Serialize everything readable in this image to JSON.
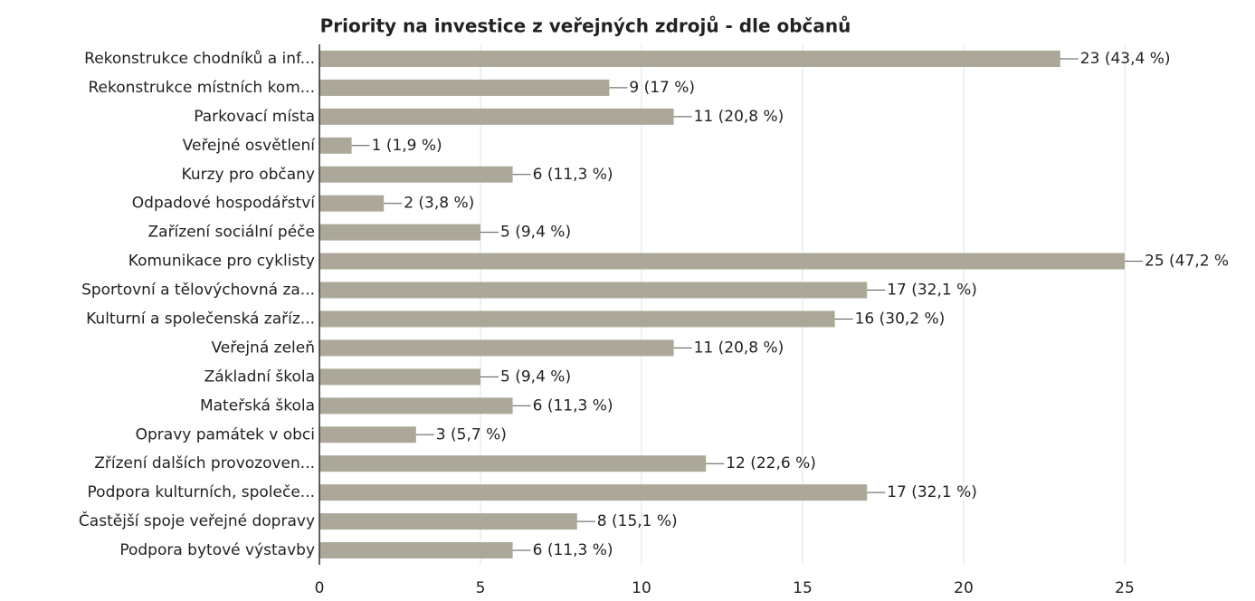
{
  "chart_data": {
    "type": "hbar",
    "title": "Priority na investice z veřejných zdrojů - dle občanů",
    "categories": [
      "Rekonstrukce chodníků a inf...",
      "Rekonstrukce místních kom...",
      "Parkovací místa",
      "Veřejné osvětlení",
      "Kurzy pro občany",
      "Odpadové hospodářství",
      "Zařízení sociální péče",
      "Komunikace pro cyklisty",
      "Sportovní a tělovýchovná za...",
      "Kulturní a společenská zaříz...",
      "Veřejná zeleň",
      "Základní škola",
      "Mateřská škola",
      "Opravy památek v obci",
      "Zřízení dalších provozoven...",
      "Podpora kulturních, společe...",
      "Častější spoje veřejné dopravy",
      "Podpora bytové výstavby"
    ],
    "values": [
      23,
      9,
      11,
      1,
      6,
      2,
      5,
      25,
      17,
      16,
      11,
      5,
      6,
      3,
      12,
      17,
      8,
      6
    ],
    "value_labels": [
      "23 (43,4 %)",
      "9 (17 %)",
      "11 (20,8 %)",
      "1 (1,9 %)",
      "6 (11,3 %)",
      "2 (3,8 %)",
      "5 (9,4 %)",
      "25 (47,2 %",
      "17 (32,1 %)",
      "16 (30,2 %)",
      "11 (20,8 %)",
      "5 (9,4 %)",
      "6 (11,3 %)",
      "3 (5,7 %)",
      "12 (22,6 %)",
      "17 (32,1 %)",
      "8 (15,1 %)",
      "6 (11,3 %)"
    ],
    "color": "#aca899",
    "xlim": [
      0,
      25
    ],
    "xticks": [
      0,
      5,
      10,
      15,
      20,
      25
    ],
    "grid": true
  }
}
